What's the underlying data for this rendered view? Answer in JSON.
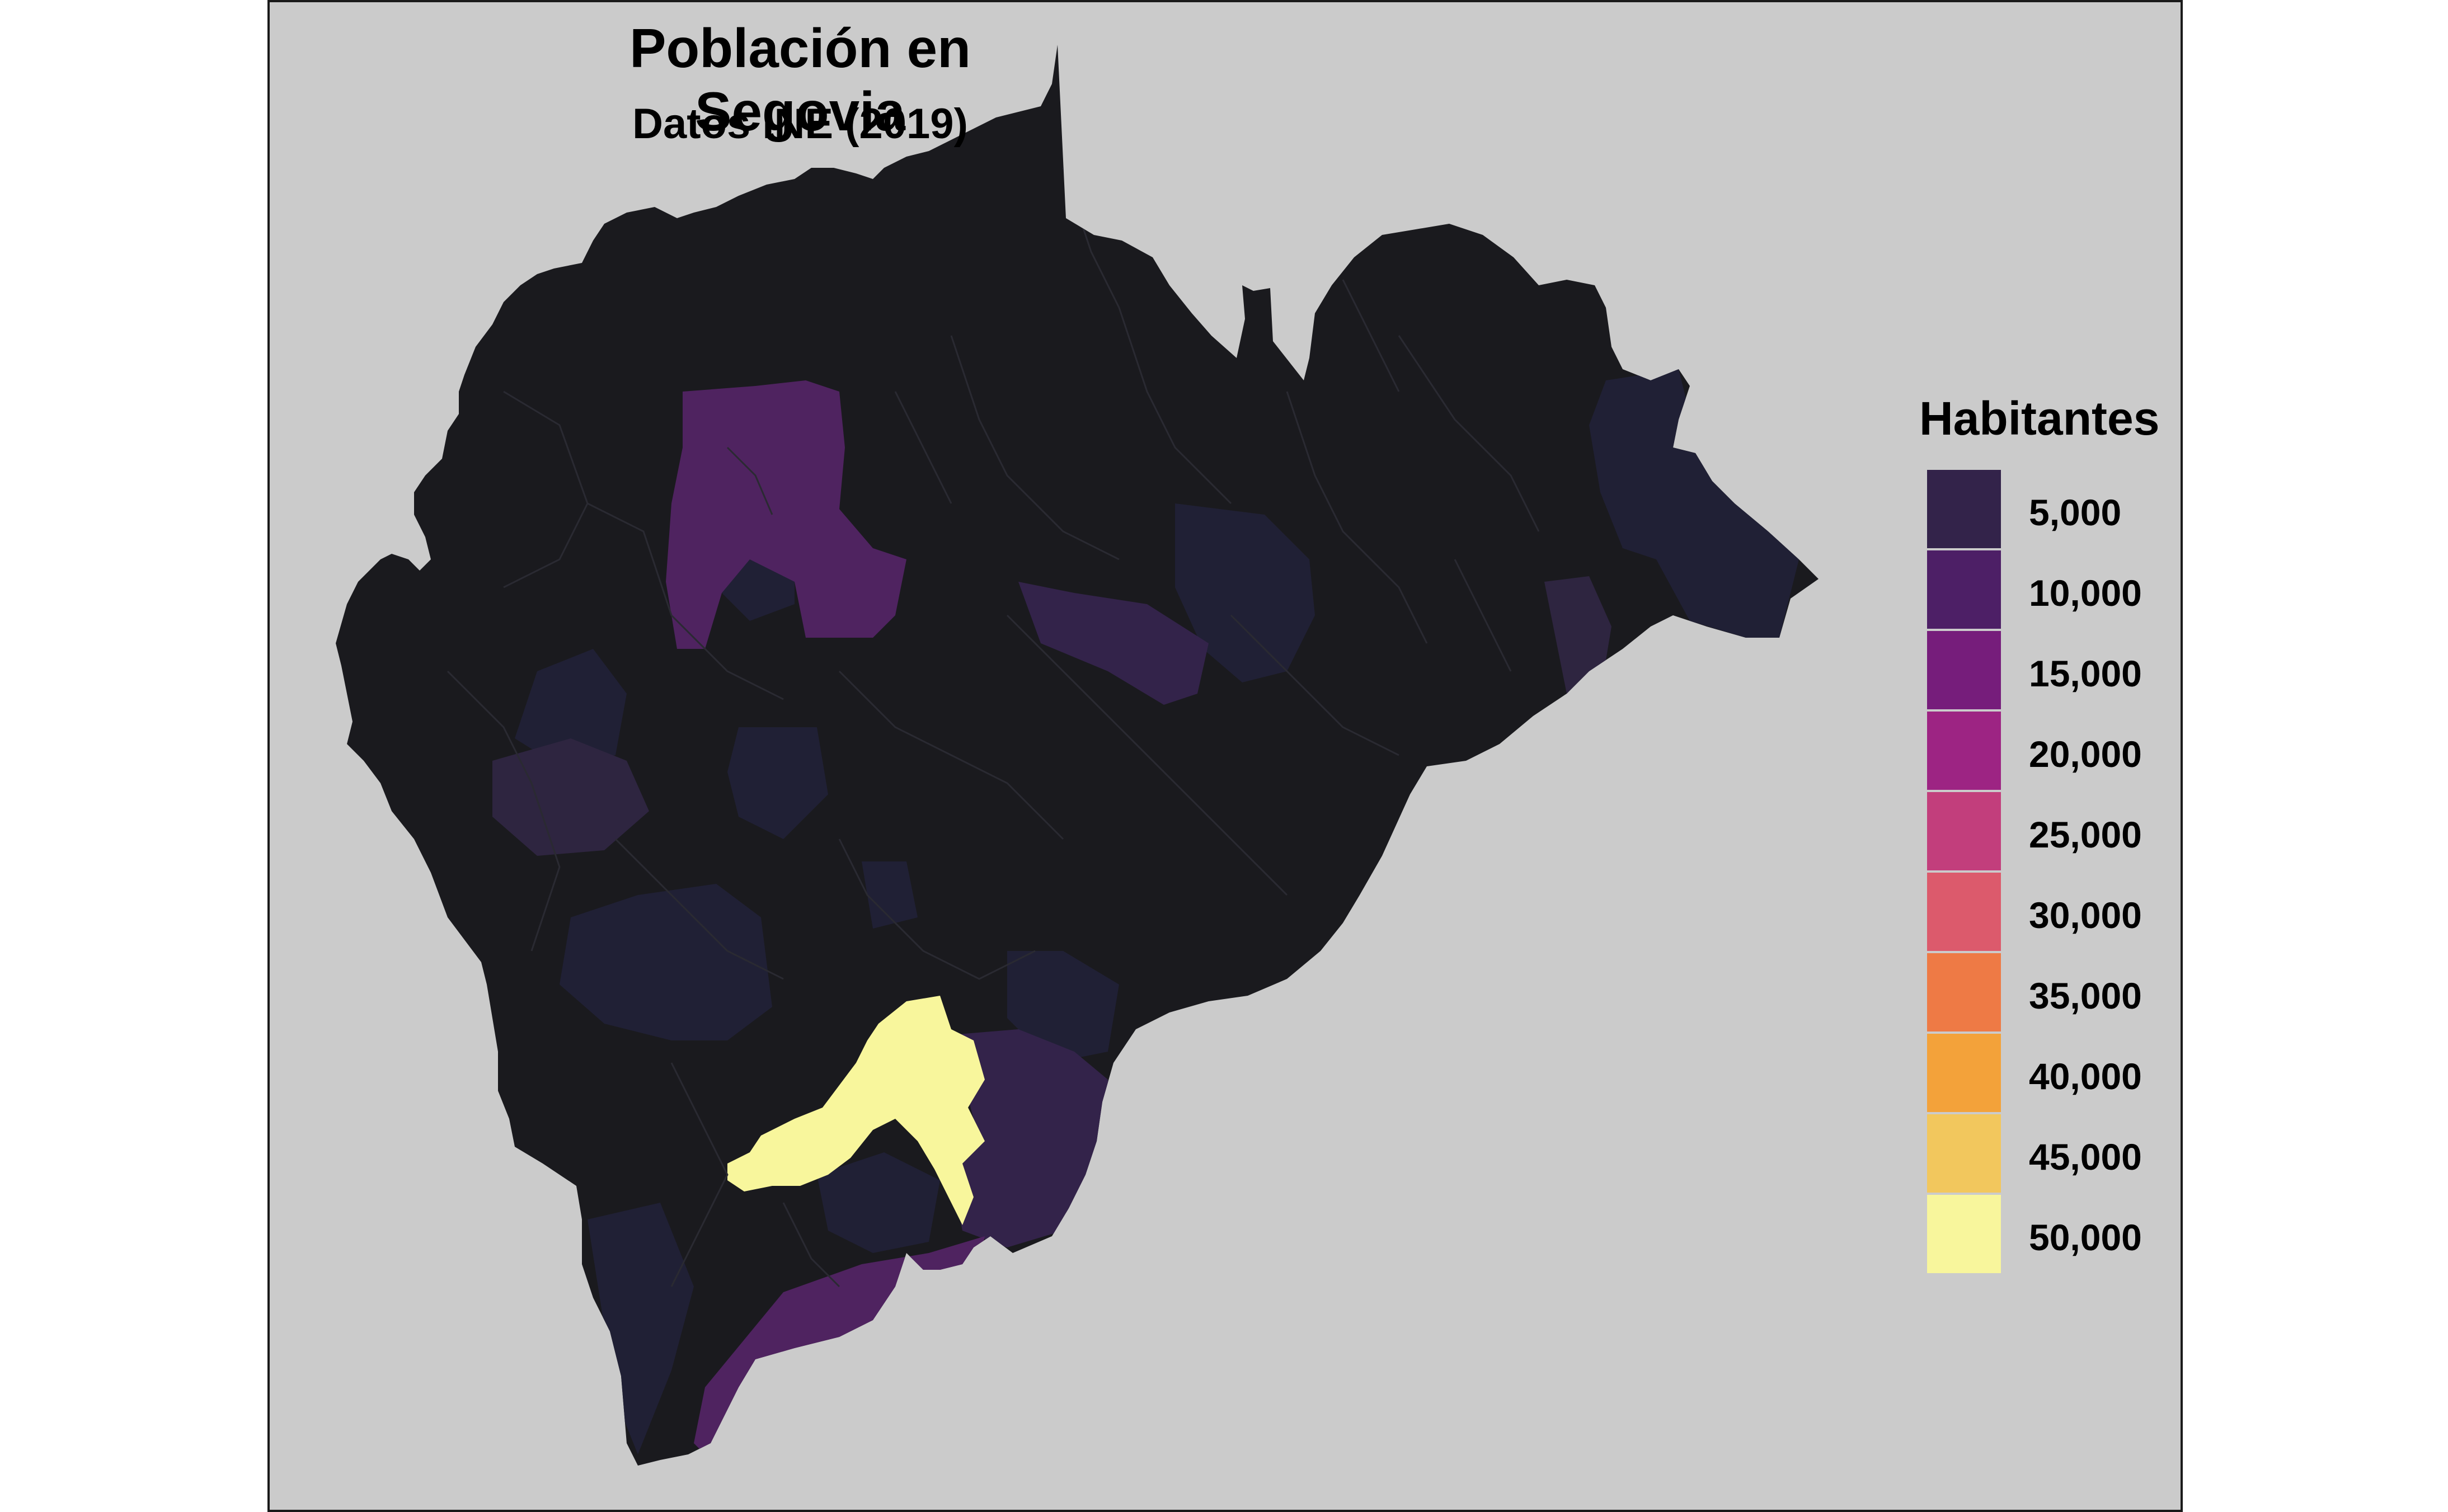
{
  "title": "Población en Segovia",
  "subtitle": "Datos INE (2019)",
  "legend": {
    "title": "Habitantes",
    "items": [
      {
        "label": "5,000",
        "color": "#33234a"
      },
      {
        "label": "10,000",
        "color": "#4d1f66"
      },
      {
        "label": "15,000",
        "color": "#761d7b"
      },
      {
        "label": "20,000",
        "color": "#9d2483"
      },
      {
        "label": "25,000",
        "color": "#c23e7c"
      },
      {
        "label": "30,000",
        "color": "#dc5a6c"
      },
      {
        "label": "35,000",
        "color": "#ee7a45"
      },
      {
        "label": "40,000",
        "color": "#f3a23a"
      },
      {
        "label": "45,000",
        "color": "#f2c75d"
      },
      {
        "label": "50,000",
        "color": "#f8f69c"
      }
    ]
  },
  "map": {
    "region": "Segovia",
    "background_color": "#cbcbcb",
    "base_fill": "#1a1a1e",
    "highlight_colors": {
      "very_high": "#f8f69c",
      "medium": "#4d235c",
      "low_high": "#2e2540",
      "low": "#202035"
    }
  }
}
